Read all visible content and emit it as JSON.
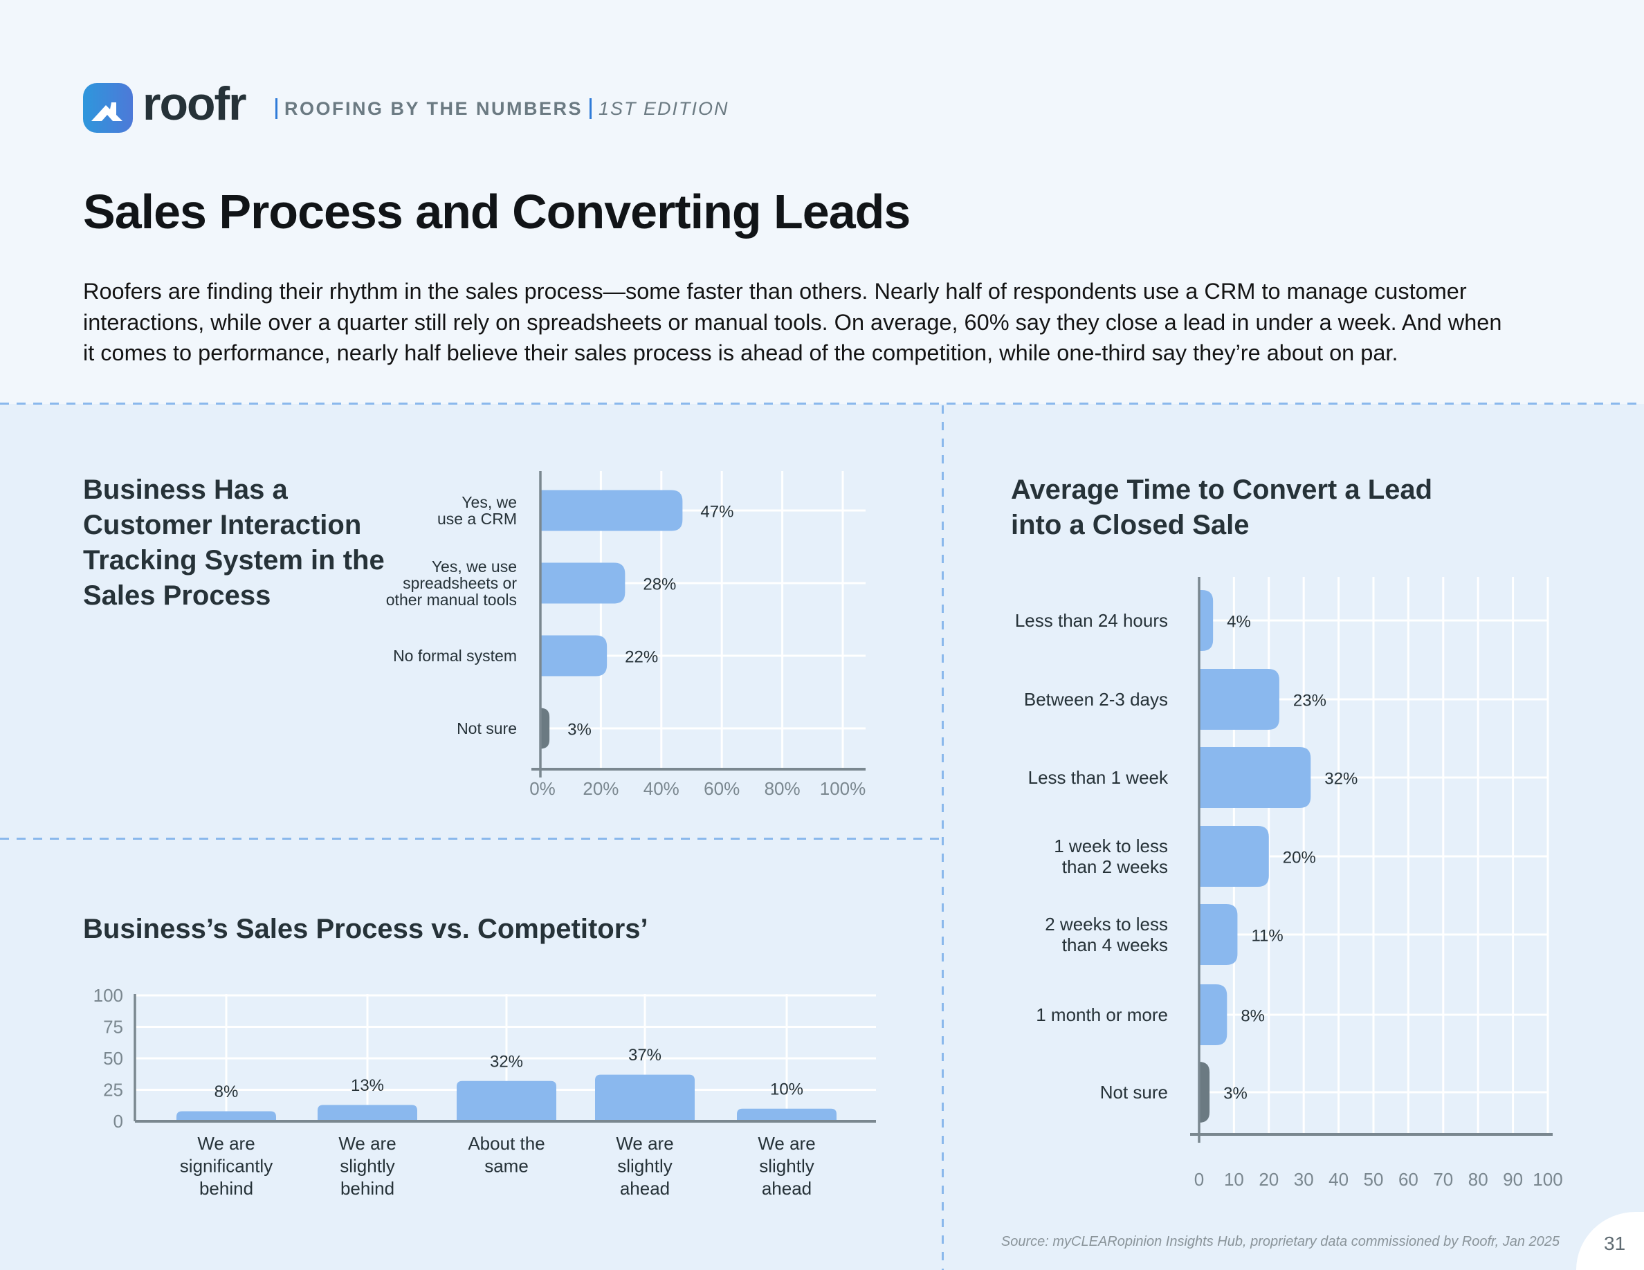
{
  "brand": {
    "logo_icon": "house-roof-icon",
    "wordmark": "roofr",
    "series": "ROOFING BY THE NUMBERS",
    "edition": "1ST EDITION",
    "accent_color": "#2F7BD8"
  },
  "page": {
    "title": "Sales Process and Converting Leads",
    "intro": "Roofers are finding their rhythm in the sales process—some faster than others. Nearly half of respondents use a CRM to manage customer interactions, while over a quarter still rely on spreadsheets or manual tools. On average, 60% say they close a lead in under a week. And when it comes to performance, nearly half believe their sales process is ahead of the competition, while one-third say they’re about on par.",
    "source": "Source: myCLEARopinion Insights Hub, proprietary data commissioned by Roofr, Jan 2025",
    "page_number": "31"
  },
  "colors": {
    "bar": "#8AB8EE",
    "bar_not_sure": "#6B7A82",
    "axis": "#7A878F",
    "grid": "#FFFFFF"
  },
  "chart_data": [
    {
      "id": "tracking-system",
      "type": "bar",
      "orientation": "horizontal",
      "title": "Business Has a Customer Interaction Tracking System in the Sales Process",
      "categories": [
        [
          "Yes, we",
          "use a CRM"
        ],
        [
          "Yes, we use",
          "spreadsheets or",
          "other manual tools"
        ],
        [
          "No formal system"
        ],
        [
          "Not sure"
        ]
      ],
      "values": [
        47,
        28,
        22,
        3
      ],
      "value_labels": [
        "47%",
        "28%",
        "22%",
        "3%"
      ],
      "highlight": [
        false,
        false,
        false,
        true
      ],
      "xlim": [
        0,
        100
      ],
      "xticks": [
        0,
        20,
        40,
        60,
        80,
        100
      ],
      "xtick_labels": [
        "0%",
        "20%",
        "40%",
        "60%",
        "80%",
        "100%"
      ],
      "grid": true,
      "xlabel": "",
      "ylabel": ""
    },
    {
      "id": "vs-competitors",
      "type": "bar",
      "orientation": "vertical",
      "title": "Business’s Sales Process vs. Competitors’",
      "categories": [
        [
          "We are",
          "significantly",
          "behind"
        ],
        [
          "We are",
          "slightly",
          "behind"
        ],
        [
          "About the",
          "same"
        ],
        [
          "We are",
          "slightly",
          "ahead"
        ],
        [
          "We are",
          "slightly",
          "ahead"
        ]
      ],
      "values": [
        8,
        13,
        32,
        37,
        10
      ],
      "value_labels": [
        "8%",
        "13%",
        "32%",
        "37%",
        "10%"
      ],
      "ylim": [
        0,
        100
      ],
      "yticks": [
        0,
        25,
        50,
        75,
        100
      ],
      "ytick_labels": [
        "0",
        "25",
        "50",
        "75",
        "100"
      ],
      "grid": true,
      "xlabel": "",
      "ylabel": ""
    },
    {
      "id": "time-to-convert",
      "type": "bar",
      "orientation": "horizontal",
      "title": "Average Time to Convert a Lead into a Closed Sale",
      "categories": [
        [
          "Less than 24 hours"
        ],
        [
          "Between 2-3 days"
        ],
        [
          "Less than 1 week"
        ],
        [
          "1 week to less",
          "than 2 weeks"
        ],
        [
          "2 weeks to less",
          "than 4 weeks"
        ],
        [
          "1 month or more"
        ],
        [
          "Not sure"
        ]
      ],
      "values": [
        4,
        23,
        32,
        20,
        11,
        8,
        3
      ],
      "value_labels": [
        "4%",
        "23%",
        "32%",
        "20%",
        "11%",
        "8%",
        "3%"
      ],
      "highlight": [
        false,
        false,
        false,
        false,
        false,
        false,
        true
      ],
      "xlim": [
        0,
        100
      ],
      "xticks": [
        0,
        10,
        20,
        30,
        40,
        50,
        60,
        70,
        80,
        90,
        100
      ],
      "xtick_labels": [
        "0",
        "10",
        "20",
        "30",
        "40",
        "50",
        "60",
        "70",
        "80",
        "90",
        "100"
      ],
      "grid": true,
      "xlabel": "",
      "ylabel": ""
    }
  ]
}
